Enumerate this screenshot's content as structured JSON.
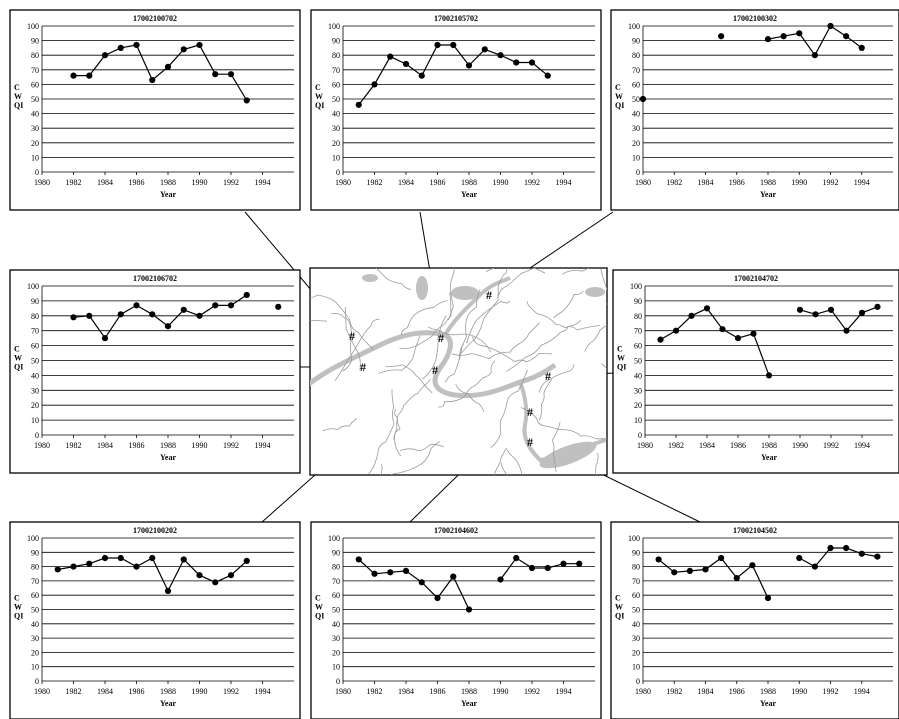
{
  "chart_data": [
    {
      "type": "line",
      "title": "17002100702",
      "xlabel": "Year",
      "ylabel": "C\nW\nQI",
      "xlim": [
        1980,
        1996
      ],
      "ylim": [
        0,
        100
      ],
      "x_ticks": [
        "1980",
        "1982",
        "1984",
        "1986",
        "1988",
        "1990",
        "1992",
        "1994"
      ],
      "y_ticks": [
        "0",
        "10",
        "20",
        "30",
        "40",
        "50",
        "60",
        "70",
        "80",
        "90",
        "100"
      ],
      "grid": "horizontal",
      "series": [
        {
          "x": [
            1982,
            1983,
            1984,
            1985,
            1986,
            1987,
            1988,
            1989,
            1990,
            1991,
            1992,
            1993
          ],
          "y": [
            66,
            66,
            80,
            85,
            87,
            63,
            72,
            84,
            87,
            67,
            67,
            49
          ]
        }
      ]
    },
    {
      "type": "line",
      "title": "17002105702",
      "xlabel": "Year",
      "ylabel": "C\nW\nQI",
      "xlim": [
        1980,
        1996
      ],
      "ylim": [
        0,
        100
      ],
      "x_ticks": [
        "1980",
        "1982",
        "1984",
        "1986",
        "1988",
        "1990",
        "1992",
        "1994"
      ],
      "y_ticks": [
        "0",
        "10",
        "20",
        "30",
        "40",
        "50",
        "60",
        "70",
        "80",
        "90",
        "100"
      ],
      "grid": "horizontal",
      "series": [
        {
          "x": [
            1981,
            1982,
            1983,
            1984,
            1985,
            1986,
            1987,
            1988,
            1989,
            1990,
            1991,
            1992,
            1993
          ],
          "y": [
            46,
            60,
            79,
            74,
            66,
            87,
            87,
            73,
            84,
            80,
            75,
            75,
            66
          ]
        }
      ]
    },
    {
      "type": "line",
      "title": "17002100302",
      "xlabel": "Year",
      "ylabel": "C\nW\nQI",
      "xlim": [
        1980,
        1996
      ],
      "ylim": [
        0,
        100
      ],
      "x_ticks": [
        "1980",
        "1982",
        "1984",
        "1986",
        "1988",
        "1990",
        "1992",
        "1994"
      ],
      "y_ticks": [
        "0",
        "10",
        "20",
        "30",
        "40",
        "50",
        "60",
        "70",
        "80",
        "90",
        "100"
      ],
      "grid": "horizontal",
      "series": [
        {
          "x": [
            1980,
            1985,
            1988,
            1989,
            1990,
            1991,
            1992,
            1993,
            1994
          ],
          "y": [
            50,
            93,
            91,
            93,
            95,
            80,
            100,
            93,
            85
          ],
          "segments": [
            [
              0
            ],
            [
              1
            ],
            [
              2,
              3,
              4,
              5,
              6,
              7,
              8
            ]
          ]
        }
      ]
    },
    {
      "type": "line",
      "title": "17002106702",
      "xlabel": "Year",
      "ylabel": "C\nW\nQI",
      "xlim": [
        1980,
        1996
      ],
      "ylim": [
        0,
        100
      ],
      "x_ticks": [
        "1980",
        "1982",
        "1984",
        "1986",
        "1988",
        "1990",
        "1992",
        "1994"
      ],
      "y_ticks": [
        "0",
        "10",
        "20",
        "30",
        "40",
        "50",
        "60",
        "70",
        "80",
        "90",
        "100"
      ],
      "grid": "horizontal",
      "series": [
        {
          "x": [
            1982,
            1983,
            1984,
            1985,
            1986,
            1987,
            1988,
            1989,
            1990,
            1991,
            1992,
            1993,
            1995
          ],
          "y": [
            79,
            80,
            65,
            81,
            87,
            81,
            73,
            84,
            80,
            87,
            87,
            94,
            86
          ],
          "segments": [
            [
              0,
              1,
              2,
              3,
              4,
              5,
              6,
              7,
              8,
              9,
              10,
              11
            ],
            [
              12
            ]
          ]
        }
      ]
    },
    {
      "type": "line",
      "title": "17002104702",
      "xlabel": "Year",
      "ylabel": "C\nW\nQI",
      "xlim": [
        1980,
        1996
      ],
      "ylim": [
        0,
        100
      ],
      "x_ticks": [
        "1980",
        "1982",
        "1984",
        "1986",
        "1988",
        "1990",
        "1992",
        "1994"
      ],
      "y_ticks": [
        "0",
        "10",
        "20",
        "30",
        "40",
        "50",
        "60",
        "70",
        "80",
        "90",
        "100"
      ],
      "grid": "horizontal",
      "series": [
        {
          "x": [
            1981,
            1982,
            1983,
            1984,
            1985,
            1986,
            1987,
            1988,
            1990,
            1991,
            1992,
            1993,
            1994,
            1995
          ],
          "y": [
            64,
            70,
            80,
            85,
            71,
            65,
            68,
            40,
            84,
            81,
            84,
            70,
            82,
            86
          ],
          "segments": [
            [
              0,
              1,
              2,
              3,
              4,
              5,
              6,
              7
            ],
            [
              8,
              9,
              10,
              11,
              12,
              13
            ]
          ]
        }
      ]
    },
    {
      "type": "line",
      "title": "17002100202",
      "xlabel": "Year",
      "ylabel": "C\nW\nQI",
      "xlim": [
        1980,
        1996
      ],
      "ylim": [
        0,
        100
      ],
      "x_ticks": [
        "1980",
        "1982",
        "1984",
        "1986",
        "1988",
        "1990",
        "1992",
        "1994"
      ],
      "y_ticks": [
        "0",
        "10",
        "20",
        "30",
        "40",
        "50",
        "60",
        "70",
        "80",
        "90",
        "100"
      ],
      "grid": "horizontal",
      "series": [
        {
          "x": [
            1981,
            1982,
            1983,
            1984,
            1985,
            1986,
            1987,
            1988,
            1989,
            1990,
            1991,
            1992,
            1993
          ],
          "y": [
            78,
            80,
            82,
            86,
            86,
            80,
            86,
            63,
            85,
            74,
            69,
            74,
            84
          ]
        }
      ]
    },
    {
      "type": "line",
      "title": "17002104602",
      "xlabel": "Year",
      "ylabel": "C\nW\nQI",
      "xlim": [
        1980,
        1996
      ],
      "ylim": [
        0,
        100
      ],
      "x_ticks": [
        "1980",
        "1982",
        "1984",
        "1986",
        "1988",
        "1990",
        "1992",
        "1994"
      ],
      "y_ticks": [
        "0",
        "10",
        "20",
        "30",
        "40",
        "50",
        "60",
        "70",
        "80",
        "90",
        "100"
      ],
      "grid": "horizontal",
      "series": [
        {
          "x": [
            1981,
            1982,
            1983,
            1984,
            1985,
            1986,
            1987,
            1988,
            1990,
            1991,
            1992,
            1993,
            1994,
            1995
          ],
          "y": [
            85,
            75,
            76,
            77,
            69,
            58,
            73,
            50,
            71,
            86,
            79,
            79,
            82,
            82
          ],
          "segments": [
            [
              0,
              1,
              2,
              3,
              4,
              5,
              6,
              7
            ],
            [
              8,
              9,
              10,
              11,
              12,
              13
            ]
          ]
        }
      ]
    },
    {
      "type": "line",
      "title": "17002104502",
      "xlabel": "Year",
      "ylabel": "C\nW\nQI",
      "xlim": [
        1980,
        1996
      ],
      "ylim": [
        0,
        100
      ],
      "x_ticks": [
        "1980",
        "1982",
        "1984",
        "1986",
        "1988",
        "1990",
        "1992",
        "1994"
      ],
      "y_ticks": [
        "0",
        "10",
        "20",
        "30",
        "40",
        "50",
        "60",
        "70",
        "80",
        "90",
        "100"
      ],
      "grid": "horizontal",
      "series": [
        {
          "x": [
            1981,
            1982,
            1983,
            1984,
            1985,
            1986,
            1987,
            1988,
            1990,
            1991,
            1992,
            1993,
            1994,
            1995
          ],
          "y": [
            85,
            76,
            77,
            78,
            86,
            72,
            81,
            58,
            86,
            80,
            93,
            93,
            89,
            87
          ],
          "segments": [
            [
              0,
              1,
              2,
              3,
              4,
              5,
              6,
              7
            ],
            [
              8,
              9,
              10,
              11,
              12,
              13
            ]
          ]
        }
      ]
    }
  ],
  "map": {
    "marker_label": "#",
    "marker_count": 8
  },
  "colors": {
    "line": "#000000",
    "water": "#c0c0c0",
    "river": "#9a9a9a"
  }
}
